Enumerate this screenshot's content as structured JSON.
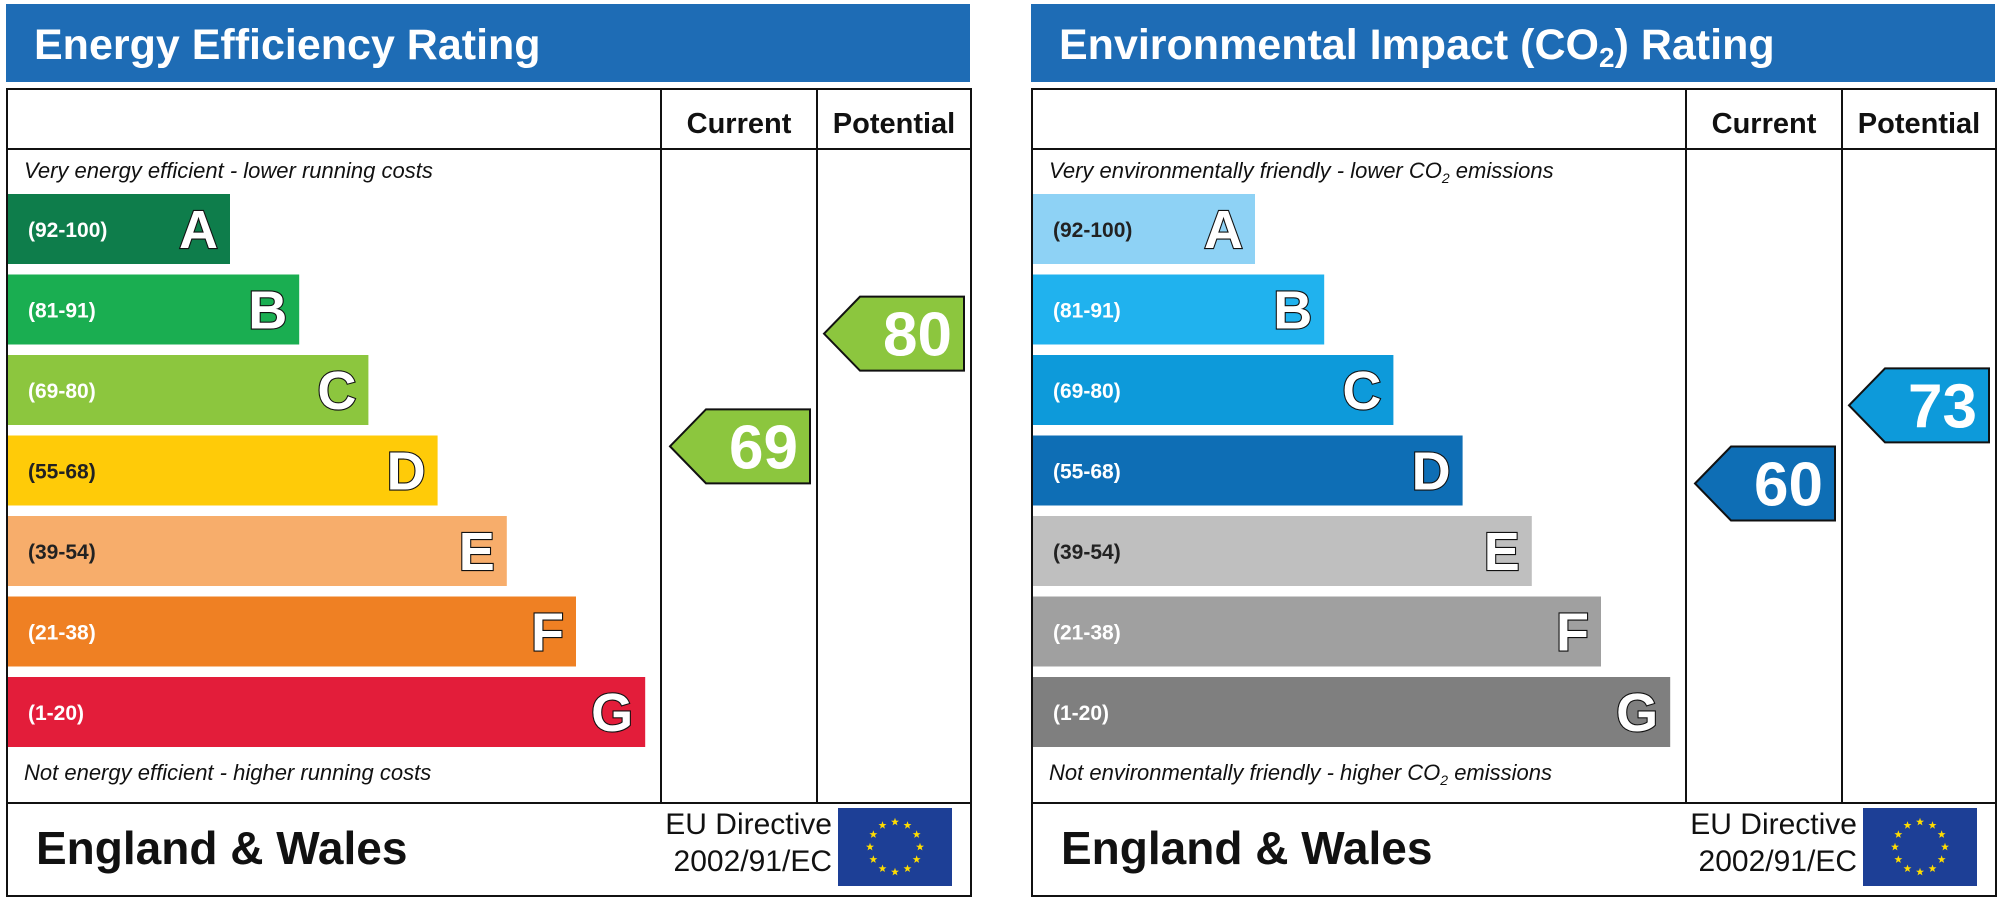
{
  "chart_data": [
    {
      "type": "bar",
      "title": "Energy Efficiency Rating",
      "title_sub": "",
      "title_suffix": "",
      "columns": {
        "current": "Current",
        "potential": "Potential"
      },
      "caption_top": {
        "pre": "Very energy efficient - lower running costs",
        "sub": "",
        "post": ""
      },
      "caption_bottom": {
        "pre": "Not energy efficient - higher running costs",
        "sub": "",
        "post": ""
      },
      "bands": [
        {
          "letter": "A",
          "range": "(92-100)",
          "color": "#0E7D4B"
        },
        {
          "letter": "B",
          "range": "(81-91)",
          "color": "#1AAE51"
        },
        {
          "letter": "C",
          "range": "(69-80)",
          "color": "#8CC63E"
        },
        {
          "letter": "D",
          "range": "(55-68)",
          "color": "#FFCB08"
        },
        {
          "letter": "E",
          "range": "(39-54)",
          "color": "#F7AD6B"
        },
        {
          "letter": "F",
          "range": "(21-38)",
          "color": "#EF8023"
        },
        {
          "letter": "G",
          "range": "(1-20)",
          "color": "#E31D3A"
        }
      ],
      "current": {
        "value": 69,
        "band": "C",
        "color": "#8CC63E"
      },
      "potential": {
        "value": 80,
        "band": "C",
        "color": "#8CC63E"
      },
      "footer": {
        "region": "England & Wales",
        "directive_line1": "EU Directive",
        "directive_line2": "2002/91/EC"
      }
    },
    {
      "type": "bar",
      "title": "Environmental Impact (CO",
      "title_sub": "2",
      "title_suffix": ") Rating",
      "columns": {
        "current": "Current",
        "potential": "Potential"
      },
      "caption_top": {
        "pre": "Very environmentally friendly - lower CO",
        "sub": "2",
        "post": " emissions"
      },
      "caption_bottom": {
        "pre": "Not environmentally friendly - higher CO",
        "sub": "2",
        "post": " emissions"
      },
      "bands": [
        {
          "letter": "A",
          "range": "(92-100)",
          "color": "#8ED2F5"
        },
        {
          "letter": "B",
          "range": "(81-91)",
          "color": "#20B2EE"
        },
        {
          "letter": "C",
          "range": "(69-80)",
          "color": "#0D9ADA"
        },
        {
          "letter": "D",
          "range": "(55-68)",
          "color": "#0E6EB5"
        },
        {
          "letter": "E",
          "range": "(39-54)",
          "color": "#BFBFBF"
        },
        {
          "letter": "F",
          "range": "(21-38)",
          "color": "#A0A0A0"
        },
        {
          "letter": "G",
          "range": "(1-20)",
          "color": "#7F7F7F"
        }
      ],
      "current": {
        "value": 60,
        "band": "D",
        "color": "#0E6EB5"
      },
      "potential": {
        "value": 73,
        "band": "C",
        "color": "#0D9ADA"
      },
      "footer": {
        "region": "England & Wales",
        "directive_line1": "EU Directive",
        "directive_line2": "2002/91/EC"
      }
    }
  ]
}
